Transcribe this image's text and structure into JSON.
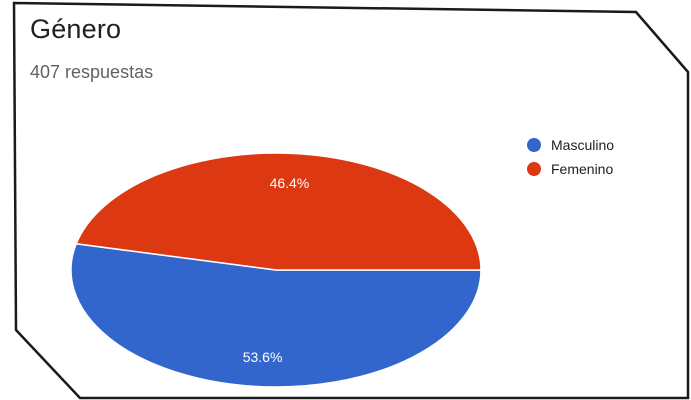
{
  "card": {
    "title": "Género",
    "subtitle": "407 respuestas"
  },
  "colors": {
    "masculino": "#3366cc",
    "femenino": "#dc3912",
    "frame": "#1a1a1a",
    "slice_label": "#ffffff"
  },
  "chart_data": {
    "type": "pie",
    "title": "Género",
    "total_responses": 407,
    "legend_position": "right",
    "slices": [
      {
        "name": "Masculino",
        "value": 53.6,
        "label": "53.6%",
        "color": "#3366cc"
      },
      {
        "name": "Femenino",
        "value": 46.4,
        "label": "46.4%",
        "color": "#dc3912"
      }
    ]
  }
}
